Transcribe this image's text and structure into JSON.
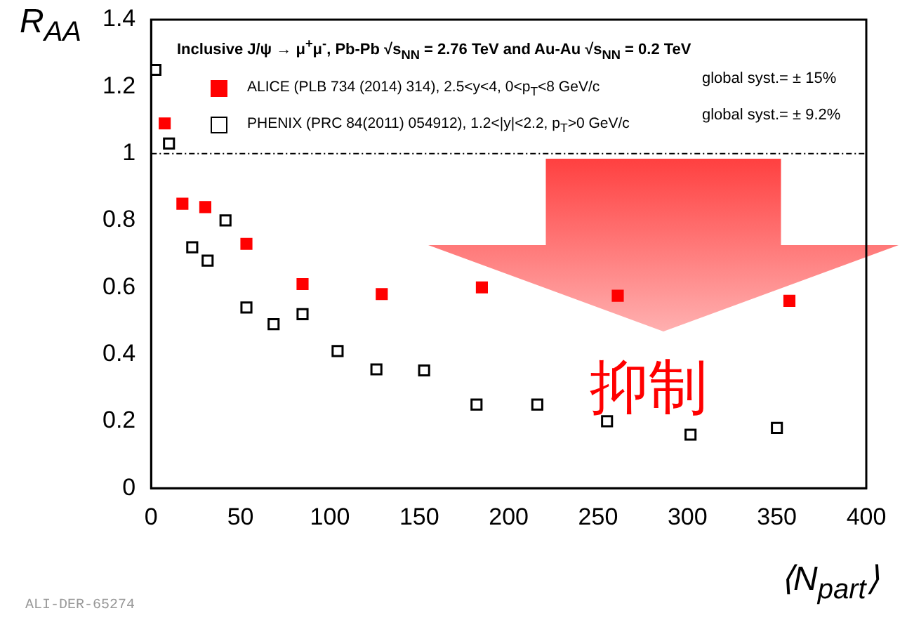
{
  "chart_data": {
    "type": "scatter",
    "xlabel": "⟨N$_{part}$⟩",
    "ylabel": "R$_{AA}$",
    "legend_title": "Inclusive J/ψ → μ$^{+}$μ$^{-}$, Pb-Pb √s$_{NN}$ = 2.76 TeV and Au-Au √s$_{NN}$ = 0.2 TeV",
    "xlim": [
      0,
      400
    ],
    "xticks": [
      0,
      50,
      100,
      150,
      200,
      250,
      300,
      350,
      400
    ],
    "ylim": [
      0,
      1.4
    ],
    "yticks": [
      0,
      0.2,
      0.4,
      0.6,
      0.8,
      1,
      1.2,
      1.4
    ],
    "grid": false,
    "legend": "top",
    "marker": "square",
    "ref_lines": [
      {
        "axis": "y",
        "value": 1,
        "line_style": "dashed",
        "color": "#000000"
      }
    ],
    "annotations": [
      "global syst.= ± 15%",
      "global syst.= ± 9.2%",
      "抑制",
      "ALI-DER-65274"
    ],
    "series": [
      {
        "name": "ALICE (PLB 734 (2014) 314), 2.5<y<4, 0<p$_{T}$<8 GeV/c",
        "color": "#ff0000",
        "x": [
          7.6,
          17.5,
          30.3,
          53.3,
          84.7,
          129,
          185,
          261,
          357
        ],
        "values": [
          1.09,
          0.85,
          0.84,
          0.73,
          0.61,
          0.58,
          0.6,
          0.575,
          0.56
        ]
      },
      {
        "name": "PHENIX (PRC 84(2011) 054912), 1.2<|y|<2.2, p$_{T}$>0 GeV/c",
        "color": "#000000",
        "x": [
          2.4,
          10,
          23,
          31.6,
          41.6,
          53.3,
          68.5,
          84.7,
          104.3,
          126,
          152.7,
          182,
          216,
          255,
          301.7,
          350
        ],
        "values": [
          1.25,
          1.03,
          0.72,
          0.68,
          0.8,
          0.54,
          0.49,
          0.52,
          0.41,
          0.355,
          0.352,
          0.25,
          0.25,
          0.2,
          0.16,
          0.18
        ]
      }
    ]
  }
}
